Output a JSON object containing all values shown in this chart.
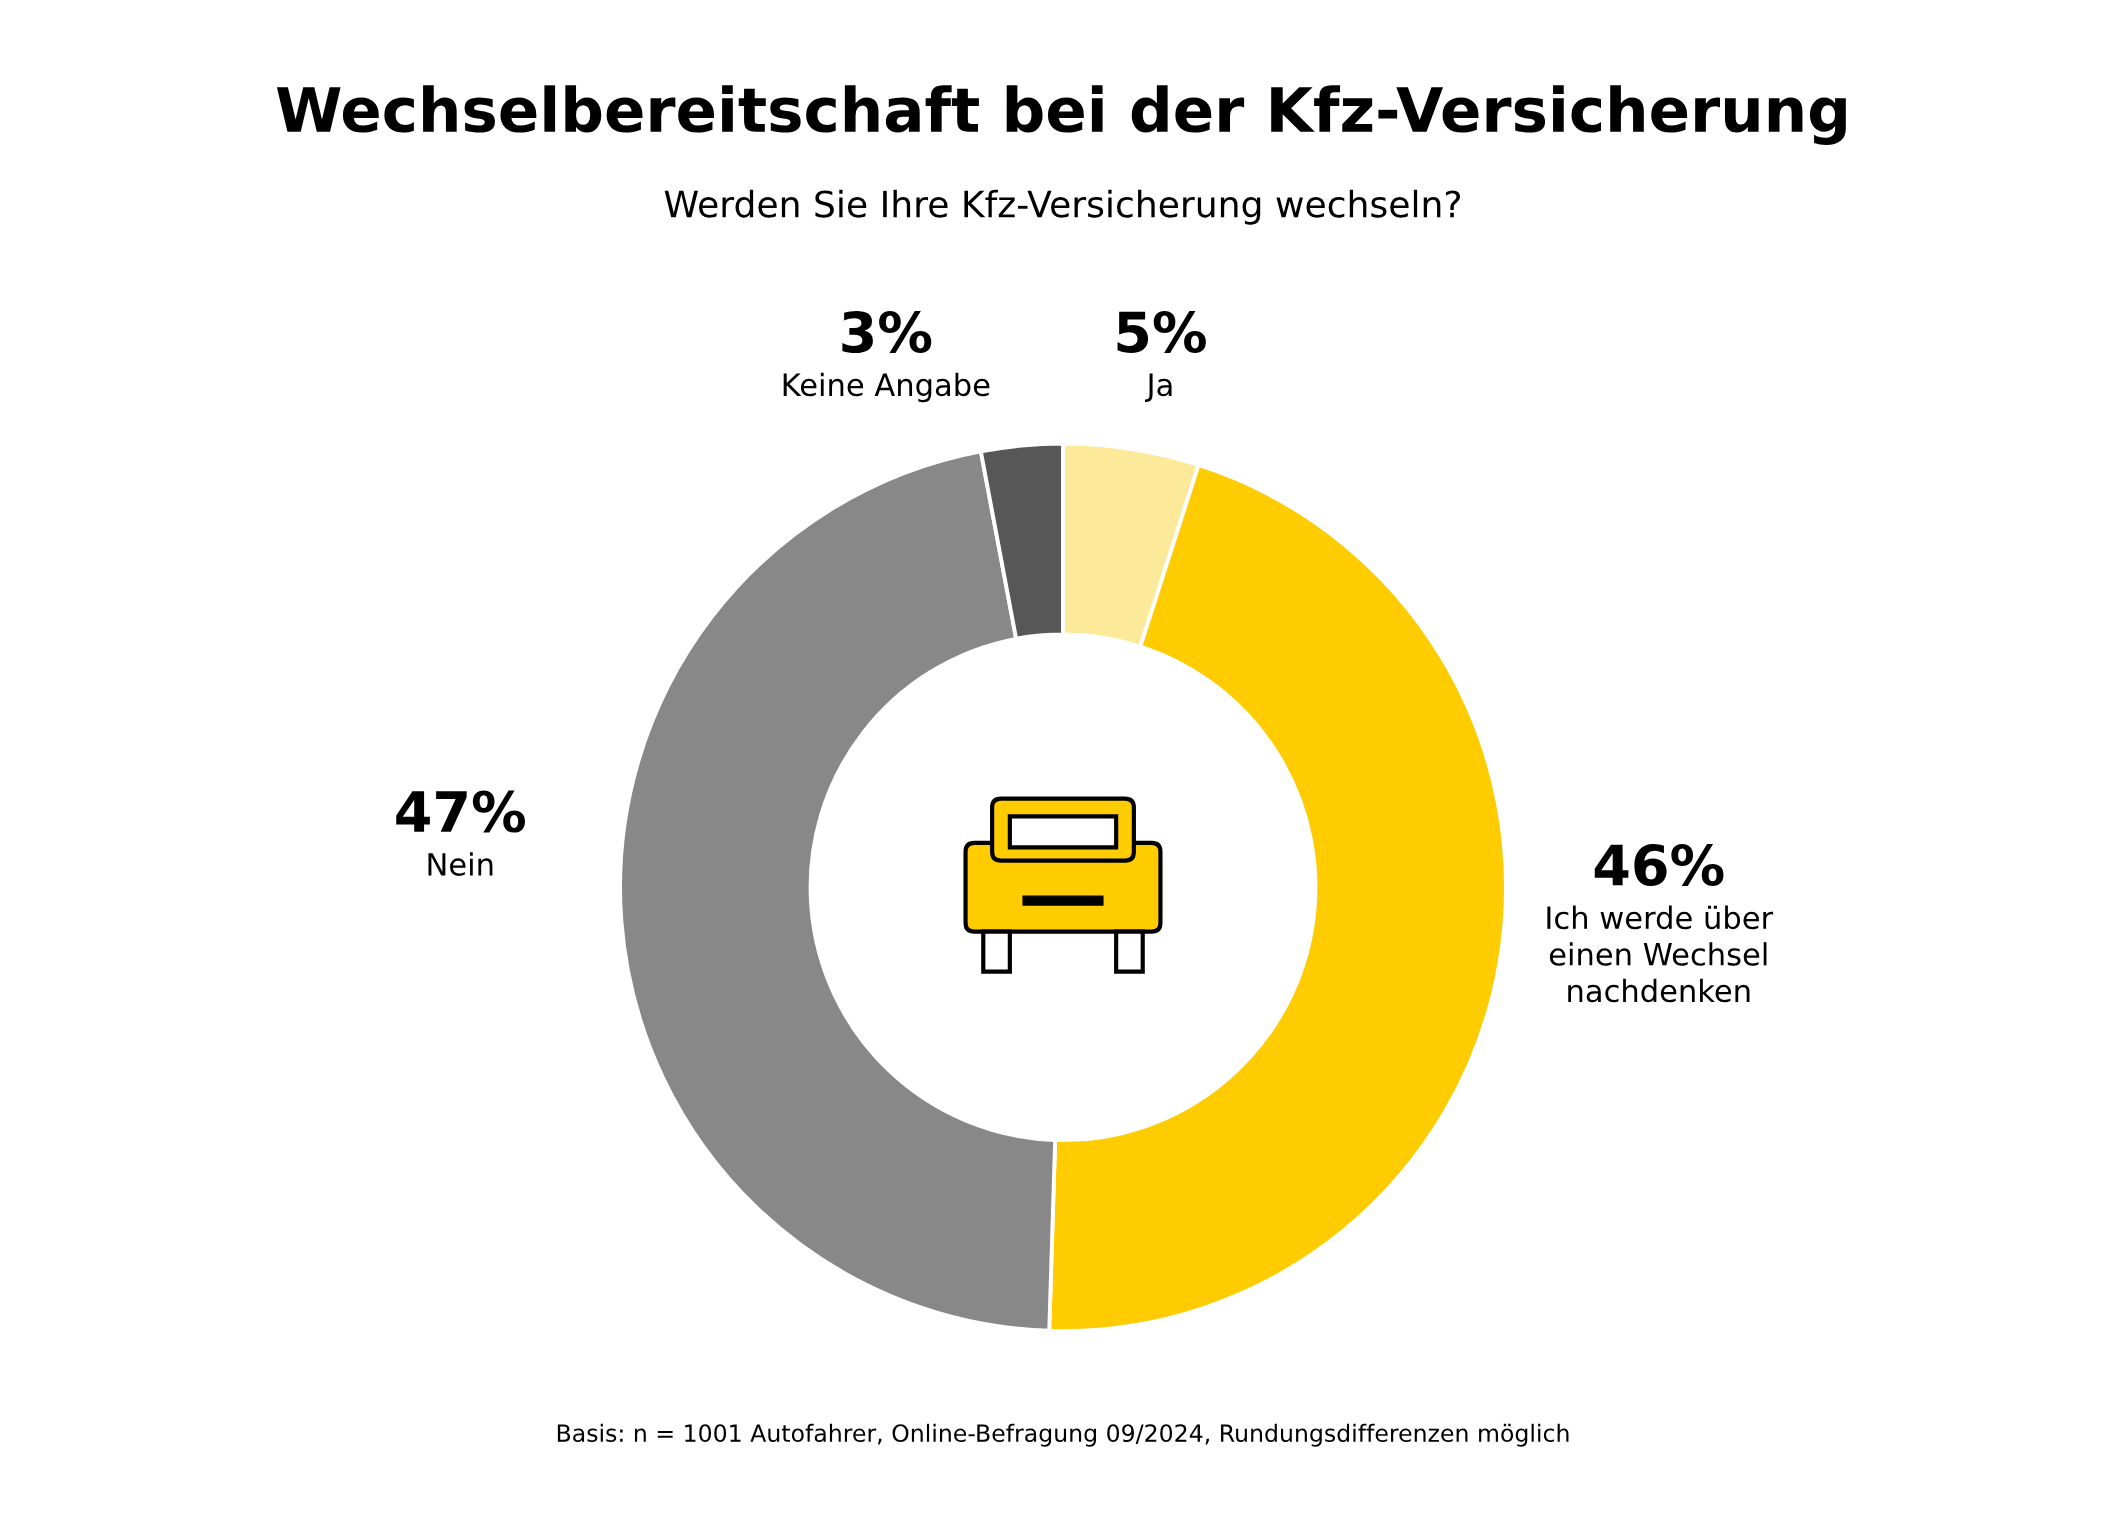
{
  "chart_data": {
    "type": "donut",
    "title": "Wechselbereitschaft bei der Kfz-Versicherung",
    "subtitle": "Werden Sie Ihre Kfz-Versicherung wechseln?",
    "categories": [
      "Ja",
      "Ich werde über\neinen Wechsel\nnachdenken",
      "Nein",
      "Keine Angabe"
    ],
    "values": [
      5,
      46,
      47,
      3
    ],
    "value_labels": [
      "5%",
      "46%",
      "47%",
      "3%"
    ],
    "colors": [
      "#fde99a",
      "#fecc00",
      "#888888",
      "#575757"
    ],
    "legend": false,
    "annotations": [
      "Basis: n = 1001 Autofahrer, Online-Befragung 09/2024, Rundungsdifferenzen möglich"
    ]
  }
}
